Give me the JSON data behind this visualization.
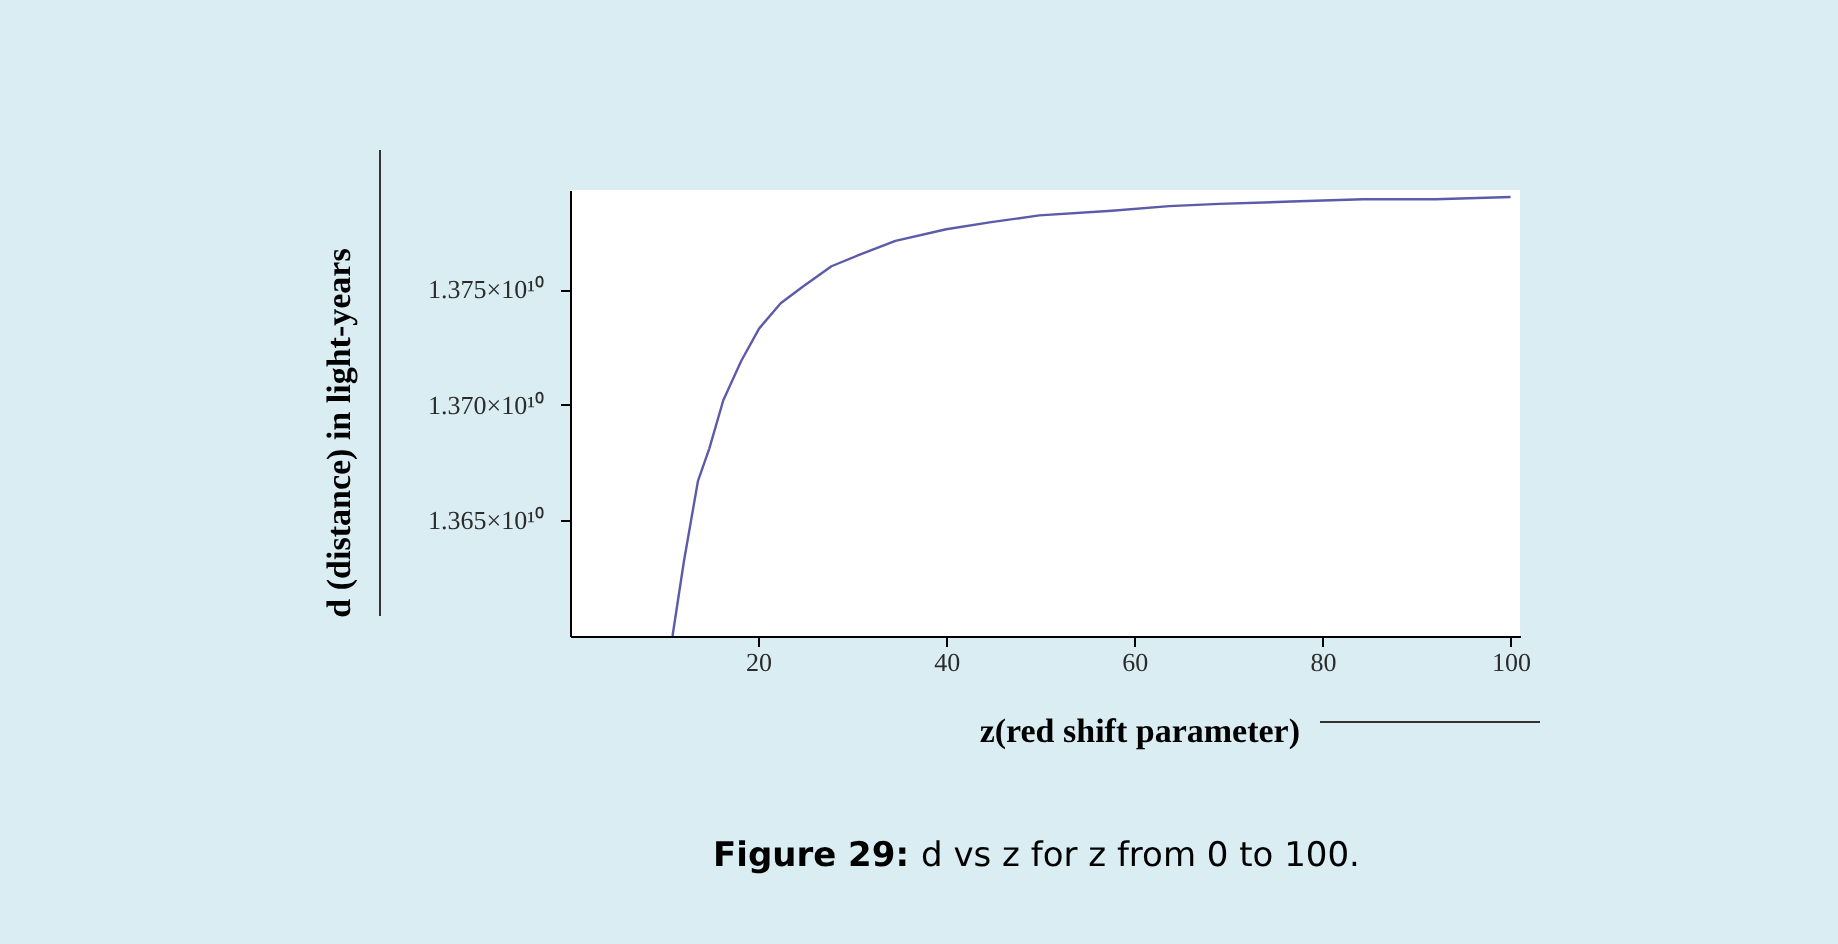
{
  "chart_data": {
    "type": "line",
    "xlabel": "z(red shift parameter)",
    "ylabel": "d (distance) in light-years",
    "annotations": [
      "Figure 29: d vs z for z from 0 to 100."
    ],
    "series": [
      {
        "color": "#5b5baa",
        "x": [
          10.9,
          12.1,
          13.6,
          14.8,
          16.3,
          18.2,
          20.1,
          22.4,
          24.7,
          27.8,
          30.8,
          34.6,
          40.0,
          44.6,
          49.9,
          57.6,
          63.7,
          69.0,
          76.7,
          84.3,
          92.0,
          100
        ],
        "values": [
          13600000000,
          13632000000,
          13667000000,
          13681000000,
          13702000000,
          13719000000,
          13733000000,
          13744000000,
          13751000000,
          13760000000,
          13765000000,
          13771000000,
          13776000000,
          13779000000,
          13782000000,
          13784000000,
          13786000000,
          13787000000,
          13788000000,
          13789000000,
          13789000000,
          13790000000
        ]
      }
    ],
    "xlim": [
      0,
      101
    ],
    "ylim": [
      13600000000,
      13793000000
    ],
    "xticks": [
      20,
      40,
      60,
      80,
      100
    ],
    "yticks": [
      {
        "value": 13650000000,
        "label": "1.365×10¹⁰"
      },
      {
        "value": 13700000000,
        "label": "1.370×10¹⁰"
      },
      {
        "value": 13750000000,
        "label": "1.375×10¹⁰"
      }
    ],
    "grid": false,
    "marker": "none",
    "line_style": "solid"
  }
}
